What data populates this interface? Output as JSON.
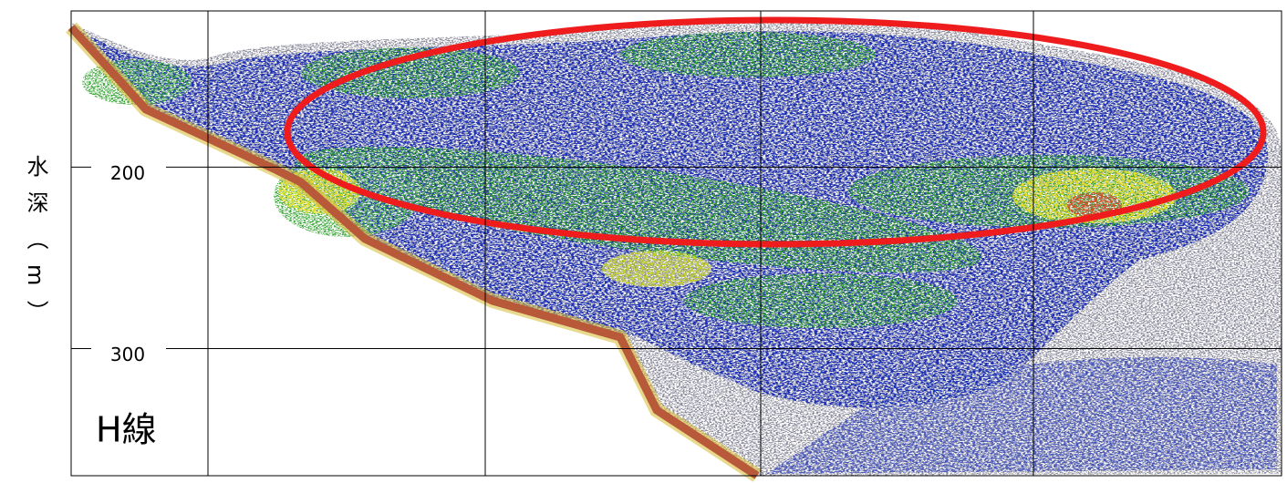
{
  "chart_data": {
    "type": "echogram",
    "y_label": "水深（m）",
    "annotation": "H線",
    "ylim": [
      114,
      370
    ],
    "y_inverted": true,
    "yticks": [
      200,
      300
    ],
    "grid": true
  }
}
